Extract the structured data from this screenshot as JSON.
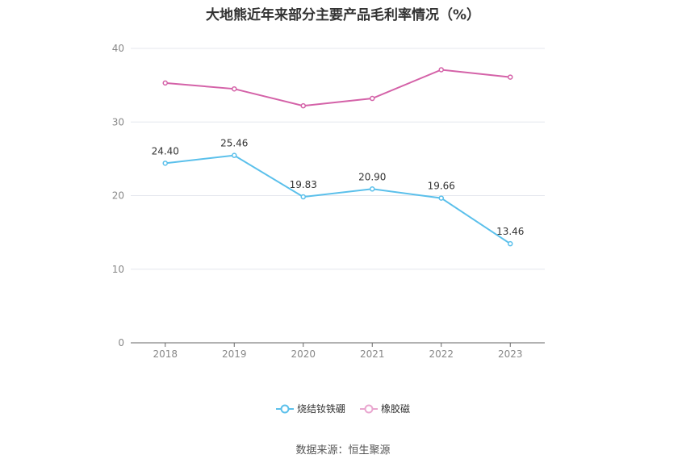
{
  "title": "大地熊近年来部分主要产品毛利率情况（%）",
  "source": "数据来源：恒生聚源",
  "chart_data": {
    "type": "line",
    "title": "大地熊近年来部分主要产品毛利率情况（%）",
    "categories": [
      "2018",
      "2019",
      "2020",
      "2021",
      "2022",
      "2023"
    ],
    "ylim": [
      0,
      40
    ],
    "yticks": [
      "0",
      "10",
      "20",
      "30",
      "40"
    ],
    "grid": true,
    "legend_position": "bottom",
    "series": [
      {
        "name": "烧结钕铁硼",
        "color": "#5bc0eb",
        "values": [
          24.4,
          25.46,
          19.83,
          20.9,
          19.66,
          13.46
        ],
        "labels": [
          "24.40",
          "25.46",
          "19.83",
          "20.90",
          "19.66",
          "13.46"
        ],
        "show_labels": true
      },
      {
        "name": "橡胶磁",
        "color": "#d462a8",
        "values": [
          35.3,
          34.5,
          32.2,
          33.2,
          37.1,
          36.1
        ],
        "show_labels": false
      }
    ]
  }
}
